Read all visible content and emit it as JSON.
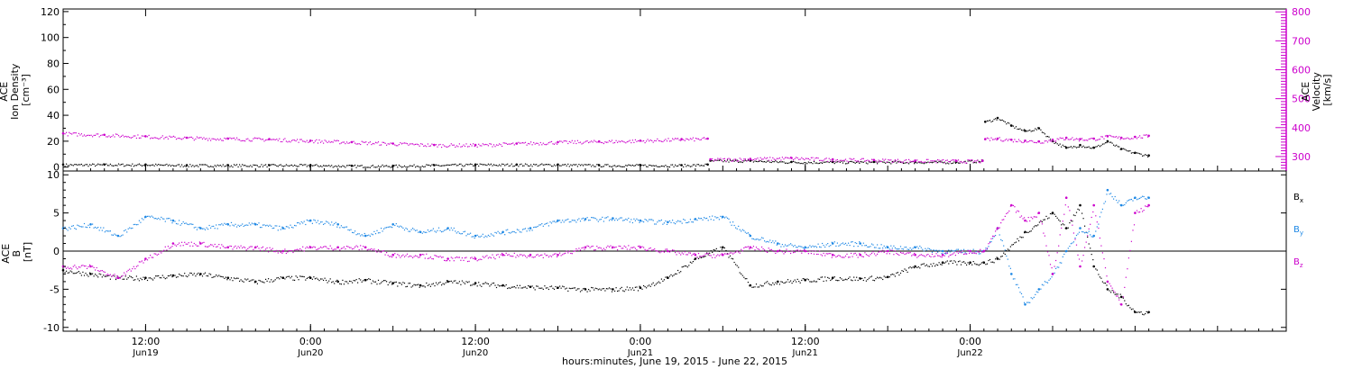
{
  "chart_data": [
    {
      "type": "scatter",
      "panel": "ion density and velocity",
      "ylabel_lines": [
        "ACE",
        "Ion Density",
        "[cm⁻³]"
      ],
      "ylim": [
        -3,
        122
      ],
      "yticks": [
        0,
        20,
        40,
        60,
        80,
        100,
        120
      ],
      "y2label_lines": [
        "ACE",
        "Velocity",
        "[km/s]"
      ],
      "y2lim": [
        250,
        810
      ],
      "y2ticks": [
        300,
        400,
        500,
        600,
        700,
        800
      ],
      "y2_color": "#cc00cc",
      "series": [
        {
          "axis": "left",
          "color": "#000000",
          "x_hours": [
            0,
            3,
            6,
            9,
            12,
            15,
            18,
            21,
            24,
            27,
            30,
            33,
            36,
            39,
            42,
            45,
            46.9,
            47.1,
            50,
            53,
            56,
            59,
            62,
            65,
            66.9,
            67.1,
            68,
            69,
            70,
            71,
            72,
            73,
            74,
            75,
            76,
            77,
            78,
            79
          ],
          "values": [
            2,
            2,
            2,
            1.5,
            1.5,
            1.5,
            1.5,
            1,
            1,
            1.5,
            2,
            2,
            2,
            1.5,
            1.5,
            1.5,
            2,
            5,
            5,
            4,
            4,
            4,
            4,
            4,
            5,
            35,
            38,
            32,
            28,
            30,
            20,
            15,
            17,
            15,
            20,
            14,
            11,
            9
          ]
        },
        {
          "axis": "right",
          "color": "#cc00cc",
          "x_hours": [
            0,
            3,
            6,
            9,
            12,
            15,
            18,
            21,
            24,
            27,
            30,
            33,
            36,
            39,
            42,
            45,
            46.9,
            47.1,
            50,
            53,
            56,
            59,
            62,
            65,
            66.9,
            67.1,
            68,
            69,
            70,
            71,
            72,
            73,
            74,
            75,
            76,
            77,
            78,
            79
          ],
          "values": [
            380,
            375,
            370,
            365,
            362,
            360,
            355,
            350,
            345,
            340,
            340,
            345,
            350,
            352,
            355,
            360,
            362,
            290,
            292,
            295,
            290,
            288,
            286,
            285,
            285,
            360,
            362,
            358,
            355,
            352,
            358,
            365,
            360,
            362,
            370,
            365,
            368,
            372
          ]
        }
      ]
    },
    {
      "type": "scatter",
      "panel": "magnetic field components",
      "ylabel_lines": [
        "ACE",
        "B",
        "[nT]"
      ],
      "ylim": [
        -10.5,
        10.5
      ],
      "yticks": [
        -10,
        -5,
        0,
        5,
        10
      ],
      "zero_line": true,
      "legend": {
        "position": "right",
        "entries": [
          {
            "label": "B",
            "sub": "x",
            "color": "#000000"
          },
          {
            "label": "B",
            "sub": "y",
            "color": "#1e88e5"
          },
          {
            "label": "B",
            "sub": "z",
            "color": "#cc00cc"
          }
        ]
      },
      "series": [
        {
          "name": "Bx",
          "color": "#000000",
          "x_hours": [
            0,
            2,
            4,
            6,
            8,
            10,
            12,
            14,
            16,
            18,
            20,
            22,
            24,
            26,
            28,
            30,
            32,
            34,
            36,
            38,
            40,
            42,
            44,
            46,
            48,
            50,
            52,
            54,
            56,
            58,
            60,
            62,
            64,
            66,
            67,
            68,
            70,
            72,
            73,
            74,
            75,
            76,
            77,
            78,
            79
          ],
          "values": [
            -2.5,
            -3,
            -3.5,
            -3.5,
            -3.2,
            -3,
            -3.5,
            -4,
            -3.5,
            -3.5,
            -4,
            -3.8,
            -4.2,
            -4.5,
            -4,
            -4.2,
            -4.5,
            -4.7,
            -4.8,
            -5,
            -5,
            -4.8,
            -3.5,
            -1,
            0.5,
            -4.5,
            -4,
            -3.8,
            -3.5,
            -3.6,
            -3.4,
            -2,
            -1.5,
            -1.5,
            -1.5,
            -1,
            2.5,
            5,
            3,
            6,
            -2,
            -5,
            -6,
            -8,
            -8
          ]
        },
        {
          "name": "By",
          "color": "#1e88e5",
          "x_hours": [
            0,
            2,
            4,
            6,
            8,
            10,
            12,
            14,
            16,
            18,
            20,
            22,
            24,
            26,
            28,
            30,
            32,
            34,
            36,
            38,
            40,
            42,
            44,
            46,
            48,
            50,
            52,
            54,
            56,
            58,
            60,
            62,
            64,
            66,
            67,
            68,
            69,
            70,
            71,
            72,
            73,
            74,
            75,
            76,
            77,
            78,
            79
          ],
          "values": [
            3,
            3.5,
            2,
            4.5,
            4,
            3,
            3.5,
            3.5,
            3,
            4,
            3.5,
            2,
            3.5,
            2.5,
            3,
            2,
            2.5,
            3,
            4,
            4.2,
            4.3,
            4,
            3.8,
            4.2,
            4.5,
            2,
            1,
            0.5,
            1,
            1,
            0.5,
            0.5,
            0,
            0,
            0,
            3,
            -3,
            -7,
            -5,
            -3,
            0,
            3,
            2,
            8,
            6,
            7,
            7
          ]
        },
        {
          "name": "Bz",
          "color": "#cc00cc",
          "x_hours": [
            0,
            2,
            4,
            6,
            8,
            10,
            12,
            14,
            16,
            18,
            20,
            22,
            24,
            26,
            28,
            30,
            32,
            34,
            36,
            38,
            40,
            42,
            44,
            46,
            48,
            50,
            52,
            54,
            56,
            58,
            60,
            62,
            64,
            66,
            67,
            68,
            69,
            70,
            71,
            72,
            73,
            74,
            75,
            76,
            77,
            78,
            79
          ],
          "values": [
            -2,
            -2,
            -3.5,
            -1,
            1,
            1,
            0.5,
            0.5,
            0,
            0.5,
            0.5,
            0.5,
            -0.5,
            -0.5,
            -1,
            -1,
            -0.5,
            -0.5,
            -0.5,
            0.5,
            0.5,
            0.5,
            0,
            -0.5,
            -0.5,
            0.5,
            0,
            0,
            -0.5,
            -0.5,
            0,
            -0.5,
            -0.5,
            0,
            0,
            3,
            6,
            4,
            5,
            -3,
            7,
            -2,
            6,
            -4,
            -7,
            5,
            6
          ]
        }
      ]
    }
  ],
  "x_axis": {
    "start_hour": 0,
    "end_hour": 89,
    "note": "hours measured from 06:00 UT on Jun 19",
    "ticks": [
      {
        "hour": 6,
        "top": "12:00",
        "bottom": "Jun19"
      },
      {
        "hour": 18,
        "top": "0:00",
        "bottom": "Jun20"
      },
      {
        "hour": 30,
        "top": "12:00",
        "bottom": "Jun20"
      },
      {
        "hour": 42,
        "top": "0:00",
        "bottom": "Jun21"
      },
      {
        "hour": 54,
        "top": "12:00",
        "bottom": "Jun21"
      },
      {
        "hour": 66,
        "top": "0:00",
        "bottom": "Jun22"
      }
    ],
    "label": "hours:minutes, June 19, 2015 - June 22, 2015"
  }
}
